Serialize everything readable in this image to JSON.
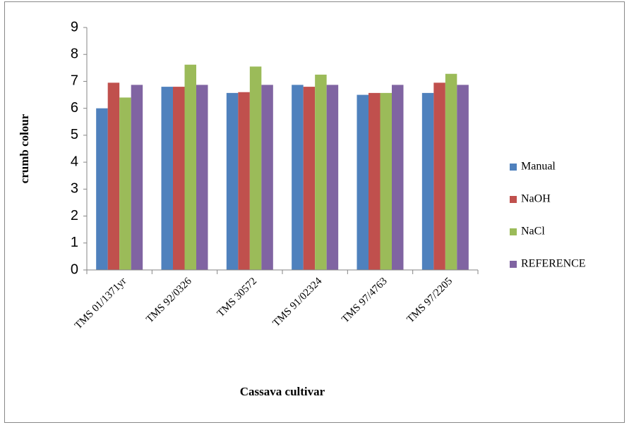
{
  "chart_data": {
    "type": "bar",
    "x_label": "Cassava cultivar",
    "y_label": "crumb colour",
    "categories": [
      "TMS 01/1371yr",
      "TMS 92/0326",
      "TMS 30572",
      "TMS 91/02324",
      "TMS 97/4763",
      "TMS 97/2205"
    ],
    "series": [
      {
        "name": "Manual",
        "color": "#4f81bd",
        "values": [
          6.0,
          6.8,
          6.57,
          6.87,
          6.5,
          6.57
        ]
      },
      {
        "name": "NaOH",
        "color": "#c0504d",
        "values": [
          6.95,
          6.8,
          6.6,
          6.8,
          6.57,
          6.95
        ]
      },
      {
        "name": "NaCl",
        "color": "#9bbb59",
        "values": [
          6.4,
          7.62,
          7.55,
          7.25,
          6.57,
          7.28
        ]
      },
      {
        "name": "REFERENCE",
        "color": "#8064a2",
        "values": [
          6.87,
          6.87,
          6.87,
          6.87,
          6.87,
          6.87
        ]
      }
    ],
    "ylim": [
      0,
      9
    ],
    "yticks": [
      0,
      1,
      2,
      3,
      4,
      5,
      6,
      7,
      8,
      9
    ],
    "grid": false,
    "legend": "right"
  }
}
